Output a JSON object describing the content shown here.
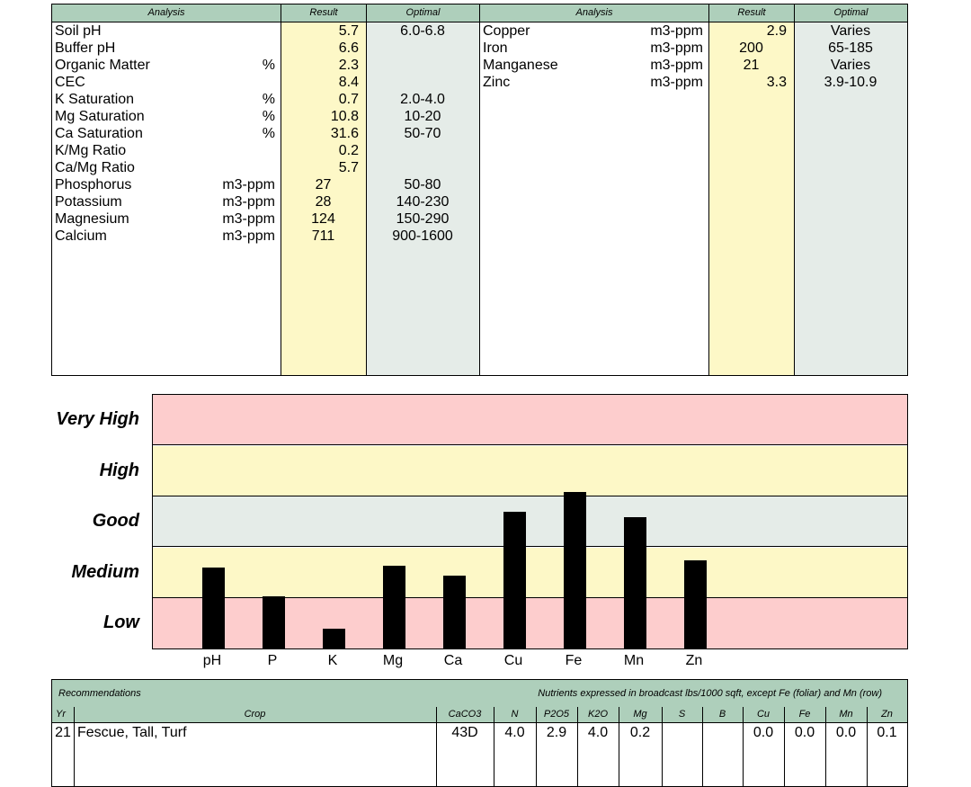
{
  "analysis_left": {
    "header": {
      "analysis": "Analysis",
      "result": "Result",
      "optimal": "Optimal"
    },
    "rows": [
      {
        "name": "Soil pH",
        "unit": "",
        "result": "5.7",
        "optimal": "6.0-6.8"
      },
      {
        "name": "Buffer pH",
        "unit": "",
        "result": "6.6",
        "optimal": ""
      },
      {
        "name": "Organic Matter",
        "unit": "%",
        "result": "2.3",
        "optimal": ""
      },
      {
        "name": "CEC",
        "unit": "",
        "result": "8.4",
        "optimal": ""
      },
      {
        "name": "K Saturation",
        "unit": "%",
        "result": "0.7",
        "optimal": "2.0-4.0"
      },
      {
        "name": "Mg Saturation",
        "unit": "%",
        "result": "10.8",
        "optimal": "10-20"
      },
      {
        "name": "Ca Saturation",
        "unit": "%",
        "result": "31.6",
        "optimal": "50-70"
      },
      {
        "name": "K/Mg Ratio",
        "unit": "",
        "result": "0.2",
        "optimal": ""
      },
      {
        "name": "Ca/Mg Ratio",
        "unit": "",
        "result": "5.7",
        "optimal": ""
      },
      {
        "name": "Phosphorus",
        "unit": "m3-ppm",
        "result": "27",
        "optimal": "50-80"
      },
      {
        "name": "Potassium",
        "unit": "m3-ppm",
        "result": "28",
        "optimal": "140-230"
      },
      {
        "name": "Magnesium",
        "unit": "m3-ppm",
        "result": "124",
        "optimal": "150-290"
      },
      {
        "name": "Calcium",
        "unit": "m3-ppm",
        "result": "711",
        "optimal": "900-1600"
      }
    ]
  },
  "analysis_right": {
    "header": {
      "analysis": "Analysis",
      "result": "Result",
      "optimal": "Optimal"
    },
    "rows": [
      {
        "name": "Copper",
        "unit": "m3-ppm",
        "result": "2.9",
        "optimal": "Varies"
      },
      {
        "name": "Iron",
        "unit": "m3-ppm",
        "result": "200",
        "optimal": "65-185"
      },
      {
        "name": "Manganese",
        "unit": "m3-ppm",
        "result": "21",
        "optimal": "Varies"
      },
      {
        "name": "Zinc",
        "unit": "m3-ppm",
        "result": "3.3",
        "optimal": "3.9-10.9"
      }
    ]
  },
  "chart_data": {
    "type": "bar",
    "levels": [
      "Low",
      "Medium",
      "Good",
      "High",
      "Very High"
    ],
    "categories": [
      "pH",
      "P",
      "K",
      "Mg",
      "Ca",
      "Cu",
      "Fe",
      "Mn",
      "Zn"
    ],
    "values": [
      1.6,
      1.05,
      0.4,
      1.65,
      1.45,
      2.7,
      3.1,
      2.6,
      1.75
    ],
    "ylim": [
      0,
      5
    ],
    "colors": {
      "low": "#fdcdcd",
      "medium": "#fdf8c7",
      "good": "#e5ece8",
      "high": "#fdf8c7",
      "very_high": "#fdcdcd",
      "bar": "#000000"
    }
  },
  "recommendations": {
    "title": "Recommendations",
    "note": "Nutrients expressed in broadcast lbs/1000 sqft, except Fe (foliar) and Mn (row)",
    "columns": [
      "Yr",
      "Crop",
      "CaCO3",
      "N",
      "P2O5",
      "K2O",
      "Mg",
      "S",
      "B",
      "Cu",
      "Fe",
      "Mn",
      "Zn"
    ],
    "row": {
      "Yr": "21",
      "Crop": "Fescue, Tall, Turf",
      "CaCO3": "43D",
      "N": "4.0",
      "P2O5": "2.9",
      "K2O": "4.0",
      "Mg": "0.2",
      "S": "",
      "B": "",
      "Cu": "0.0",
      "Fe": "0.0",
      "Mn": "0.0",
      "Zn": "0.1"
    }
  },
  "colors": {
    "header_green": "#aecfbb",
    "result_yellow": "#fdf8c7",
    "optimal_gray": "#e5ece8"
  }
}
